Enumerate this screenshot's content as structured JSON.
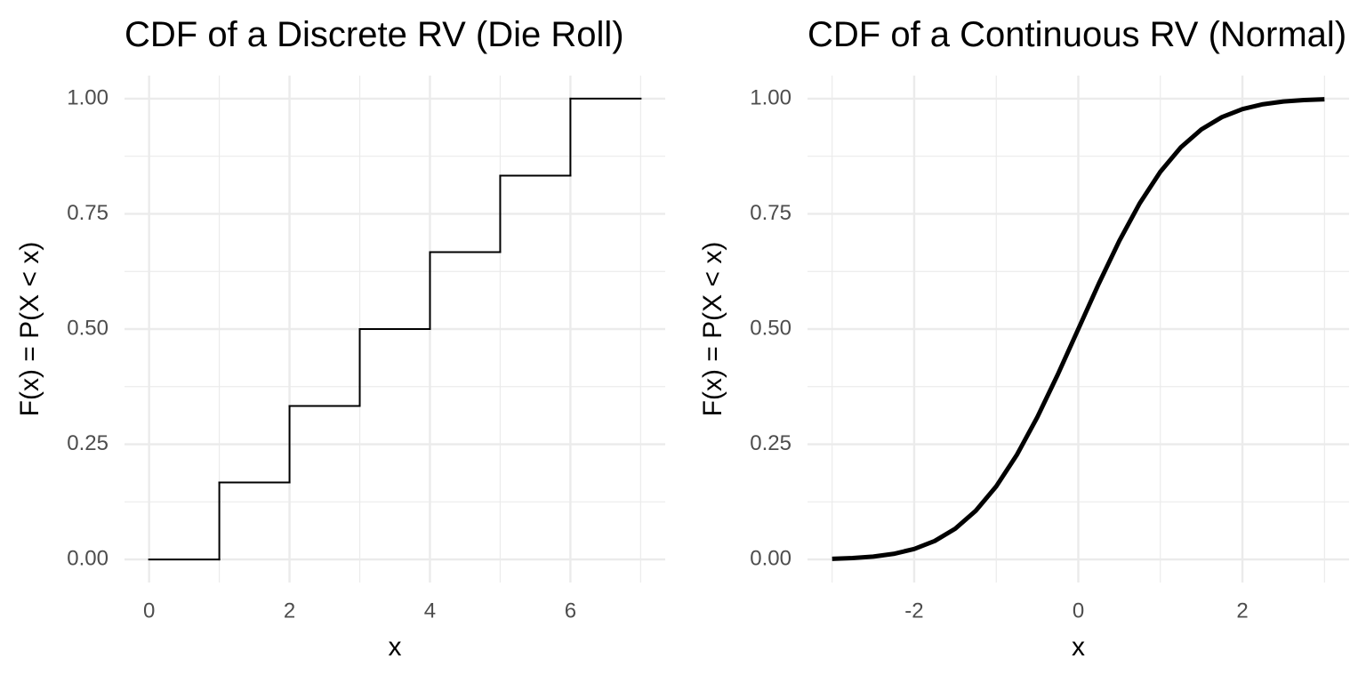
{
  "chart_data": [
    {
      "type": "step",
      "title": "CDF of a Discrete RV (Die Roll)",
      "x_label": "x",
      "y_label": "F(x) = P(X < x)",
      "x": [
        0,
        1,
        2,
        3,
        4,
        5,
        6,
        7
      ],
      "values": [
        0,
        0.167,
        0.333,
        0.5,
        0.667,
        0.833,
        1,
        1
      ],
      "color": "#000000",
      "grid": true,
      "xlim": [
        -0.35,
        7.35
      ],
      "xticks": [
        0,
        2,
        4,
        6
      ],
      "ylim": [
        -0.05,
        1.05
      ],
      "yticks": [
        {
          "value": 0,
          "label": "0.00"
        },
        {
          "value": 0.25,
          "label": "0.25"
        },
        {
          "value": 0.5,
          "label": "0.50"
        },
        {
          "value": 0.75,
          "label": "0.75"
        },
        {
          "value": 1,
          "label": "1.00"
        }
      ]
    },
    {
      "type": "line",
      "title": "CDF of a Continuous RV (Normal)",
      "x_label": "x",
      "y_label": "F(x) = P(X < x)",
      "x": [
        -3,
        -2.75,
        -2.5,
        -2.25,
        -2,
        -1.75,
        -1.5,
        -1.25,
        -1,
        -0.75,
        -0.5,
        -0.25,
        0,
        0.25,
        0.5,
        0.75,
        1,
        1.25,
        1.5,
        1.75,
        2,
        2.25,
        2.5,
        2.75,
        3
      ],
      "values": [
        0.0013,
        0.003,
        0.0062,
        0.0122,
        0.0228,
        0.0401,
        0.0668,
        0.1056,
        0.1587,
        0.2266,
        0.3085,
        0.4013,
        0.5,
        0.5987,
        0.6915,
        0.7734,
        0.8413,
        0.8944,
        0.9332,
        0.9599,
        0.9772,
        0.9878,
        0.9938,
        0.997,
        0.9987
      ],
      "color": "#000000",
      "grid": true,
      "xlim": [
        -3.3,
        3.3
      ],
      "xticks": [
        {
          "value": -2,
          "label": "-2"
        },
        0,
        2
      ],
      "ylim": [
        -0.05,
        1.05
      ],
      "yticks": [
        {
          "value": 0,
          "label": "0.00"
        },
        {
          "value": 0.25,
          "label": "0.25"
        },
        {
          "value": 0.5,
          "label": "0.50"
        },
        {
          "value": 0.75,
          "label": "0.75"
        },
        {
          "value": 1,
          "label": "1.00"
        }
      ]
    }
  ]
}
